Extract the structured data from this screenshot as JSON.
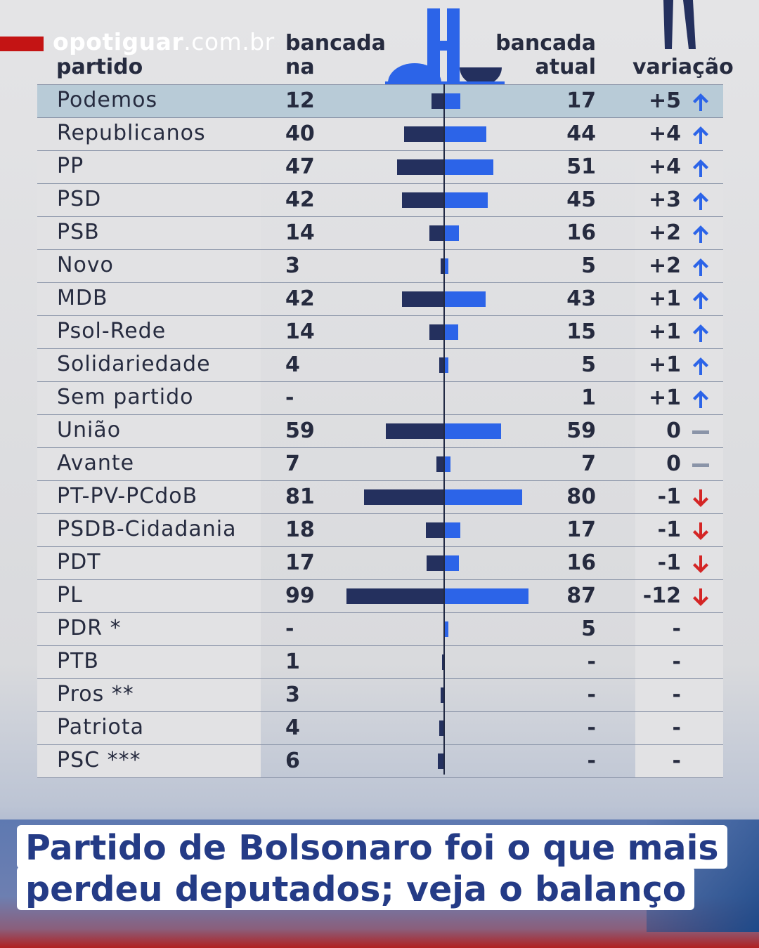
{
  "brand": {
    "bold": "opotiguar",
    "rest": ".com.br"
  },
  "headers": {
    "partido": "partido",
    "posse_line1": "bancada",
    "posse_line2": "na posse",
    "atual_line1": "bancada",
    "atual_line2": "atual",
    "variacao": "variação"
  },
  "colors": {
    "old": "#24305e",
    "new": "#2c64e8",
    "up": "#2c64e8",
    "down": "#d42525",
    "neutral": "#8a94a8",
    "highlight": "#b8cbd7"
  },
  "chart_data": {
    "type": "bar",
    "series": [
      {
        "name": "bancada na posse",
        "values": [
          12,
          40,
          47,
          42,
          14,
          3,
          42,
          14,
          4,
          null,
          59,
          7,
          81,
          18,
          17,
          99,
          null,
          1,
          3,
          4,
          6
        ]
      },
      {
        "name": "bancada atual",
        "values": [
          17,
          44,
          51,
          45,
          16,
          5,
          43,
          15,
          5,
          1,
          59,
          7,
          80,
          17,
          16,
          87,
          5,
          null,
          null,
          null,
          null
        ]
      }
    ],
    "categories": [
      "Podemos",
      "Republicanos",
      "PP",
      "PSD",
      "PSB",
      "Novo",
      "MDB",
      "Psol-Rede",
      "Solidariedade",
      "Sem partido",
      "União",
      "Avante",
      "PT-PV-PCdoB",
      "PSDB-Cidadania",
      "PDT",
      "PL",
      "PDR *",
      "PTB",
      "Pros **",
      "Patriota",
      "PSC ***"
    ],
    "rows": [
      {
        "name": "Podemos",
        "posse": "12",
        "atual": "17",
        "var": "+5",
        "dir": "up"
      },
      {
        "name": "Republicanos",
        "posse": "40",
        "atual": "44",
        "var": "+4",
        "dir": "up"
      },
      {
        "name": "PP",
        "posse": "47",
        "atual": "51",
        "var": "+4",
        "dir": "up"
      },
      {
        "name": "PSD",
        "posse": "42",
        "atual": "45",
        "var": "+3",
        "dir": "up"
      },
      {
        "name": "PSB",
        "posse": "14",
        "atual": "16",
        "var": "+2",
        "dir": "up"
      },
      {
        "name": "Novo",
        "posse": "3",
        "atual": "5",
        "var": "+2",
        "dir": "up"
      },
      {
        "name": "MDB",
        "posse": "42",
        "atual": "43",
        "var": "+1",
        "dir": "up"
      },
      {
        "name": "Psol-Rede",
        "posse": "14",
        "atual": "15",
        "var": "+1",
        "dir": "up"
      },
      {
        "name": "Solidariedade",
        "posse": "4",
        "atual": "5",
        "var": "+1",
        "dir": "up"
      },
      {
        "name": "Sem partido",
        "posse": "-",
        "atual": "1",
        "var": "+1",
        "dir": "up"
      },
      {
        "name": "União",
        "posse": "59",
        "atual": "59",
        "var": "0",
        "dir": "neutral"
      },
      {
        "name": "Avante",
        "posse": "7",
        "atual": "7",
        "var": "0",
        "dir": "neutral"
      },
      {
        "name": "PT-PV-PCdoB",
        "posse": "81",
        "atual": "80",
        "var": "-1",
        "dir": "down"
      },
      {
        "name": "PSDB-Cidadania",
        "posse": "18",
        "atual": "17",
        "var": "-1",
        "dir": "down"
      },
      {
        "name": "PDT",
        "posse": "17",
        "atual": "16",
        "var": "-1",
        "dir": "down"
      },
      {
        "name": "PL",
        "posse": "99",
        "atual": "87",
        "var": "-12",
        "dir": "down"
      },
      {
        "name": "PDR *",
        "posse": "-",
        "atual": "5",
        "var": "-",
        "dir": "none"
      },
      {
        "name": "PTB",
        "posse": "1",
        "atual": "-",
        "var": "-",
        "dir": "none"
      },
      {
        "name": "Pros **",
        "posse": "3",
        "atual": "-",
        "var": "-",
        "dir": "none"
      },
      {
        "name": "Patriota",
        "posse": "4",
        "atual": "-",
        "var": "-",
        "dir": "none"
      },
      {
        "name": "PSC ***",
        "posse": "6",
        "atual": "-",
        "var": "-",
        "dir": "none"
      }
    ],
    "highlight_row": "Podemos"
  },
  "headline": {
    "line1": "Partido de Bolsonaro foi o que mais",
    "line2": "perdeu deputados; veja o balanço"
  }
}
